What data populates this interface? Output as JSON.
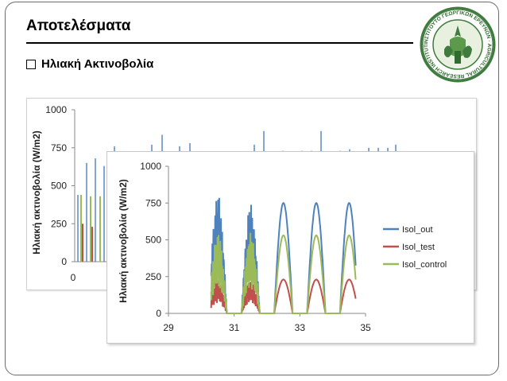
{
  "slide": {
    "title": "Αποτελέσματα",
    "bullet": "Ηλιακή Ακτινοβολία",
    "logo_text": "ΙΝΣΤΙΤΟΥΤΟ ΓΕΩΡΓΙΚΩΝ ΕΡΕΥΝΩΝ · AGRICULTURAL RESEARCH INSTITUTE"
  },
  "chart_data": [
    {
      "type": "line",
      "title": "",
      "ylabel": "Ηλιακή ακτινοβολία (W/m2)",
      "ylim": [
        0,
        1000
      ],
      "y_ticks": [
        "1000",
        "750",
        "500",
        "250",
        "0"
      ],
      "x_ticks": [
        "0"
      ],
      "xlabel": "",
      "legend_fragment": "ontrol",
      "grid": false
    },
    {
      "type": "line",
      "title": "",
      "ylabel": "Ηλιακή ακτινοβολία (W/m2)",
      "xlabel": "",
      "xlim": [
        29,
        35
      ],
      "ylim": [
        0,
        1000
      ],
      "x_ticks": [
        "29",
        "31",
        "33",
        "35"
      ],
      "y_ticks": [
        "1000",
        "750",
        "500",
        "250",
        "0"
      ],
      "legend_position": "right",
      "grid": false,
      "days": [
        30.5,
        31.5,
        32.5,
        33.5,
        34.5
      ],
      "series": [
        {
          "name": "Isol_out",
          "color": "#4f81bd",
          "daily_peak": [
            820,
            750,
            750,
            750,
            750
          ]
        },
        {
          "name": "Isol_test",
          "color": "#c0504d",
          "daily_peak": [
            230,
            230,
            230,
            230,
            230
          ]
        },
        {
          "name": "Isol_control",
          "color": "#9bbb59",
          "daily_peak": [
            560,
            550,
            530,
            530,
            530
          ]
        }
      ]
    }
  ]
}
